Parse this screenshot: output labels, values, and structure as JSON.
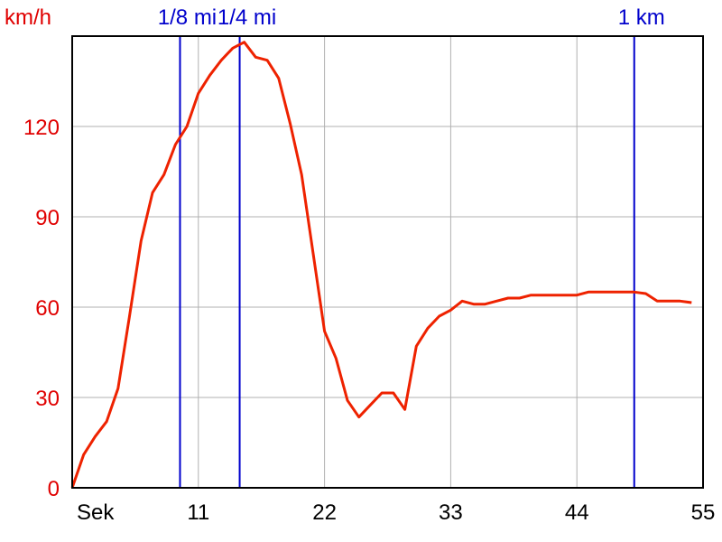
{
  "chart_data": {
    "type": "line",
    "ylabel": "km/h",
    "xlabel": "Sek",
    "xlim": [
      0,
      55
    ],
    "ylim": [
      0,
      150
    ],
    "x_ticks": [
      11,
      22,
      33,
      44,
      55
    ],
    "y_ticks": [
      0,
      30,
      60,
      90,
      120
    ],
    "grid": true,
    "colors": {
      "line": "#ee2200",
      "marker": "#0000cc",
      "ytext": "#e00000",
      "grid": "#b0b0b0"
    },
    "markers": [
      {
        "label": "1/8 mi",
        "x": 9.4
      },
      {
        "label": "1/4 mi",
        "x": 14.6
      },
      {
        "label": "1 km",
        "x": 49
      }
    ],
    "series": [
      {
        "x": [
          0,
          1,
          2,
          3,
          4,
          5,
          6,
          7,
          8,
          9,
          10,
          11,
          12,
          13,
          14,
          15,
          16,
          17,
          18,
          19,
          20,
          21,
          22,
          23,
          24,
          25,
          26,
          27,
          28,
          29,
          30,
          31,
          32,
          33,
          34,
          35,
          36,
          37,
          38,
          39,
          40,
          41,
          42,
          43,
          44,
          45,
          46,
          47,
          48,
          49,
          50,
          51,
          52,
          53,
          54
        ],
        "y": [
          0,
          11,
          17,
          22,
          33,
          57,
          82,
          98,
          104,
          114,
          120,
          131,
          137,
          142,
          146,
          148,
          143,
          142,
          136,
          121,
          104,
          78,
          52,
          43,
          29,
          23.5,
          27.5,
          31.5,
          31.5,
          26,
          47,
          53,
          57,
          59,
          62,
          61,
          61,
          62,
          63,
          63,
          64,
          64,
          64,
          64,
          64,
          65,
          65,
          65,
          65,
          65,
          64.5,
          62,
          62,
          62,
          61.5
        ]
      }
    ]
  }
}
